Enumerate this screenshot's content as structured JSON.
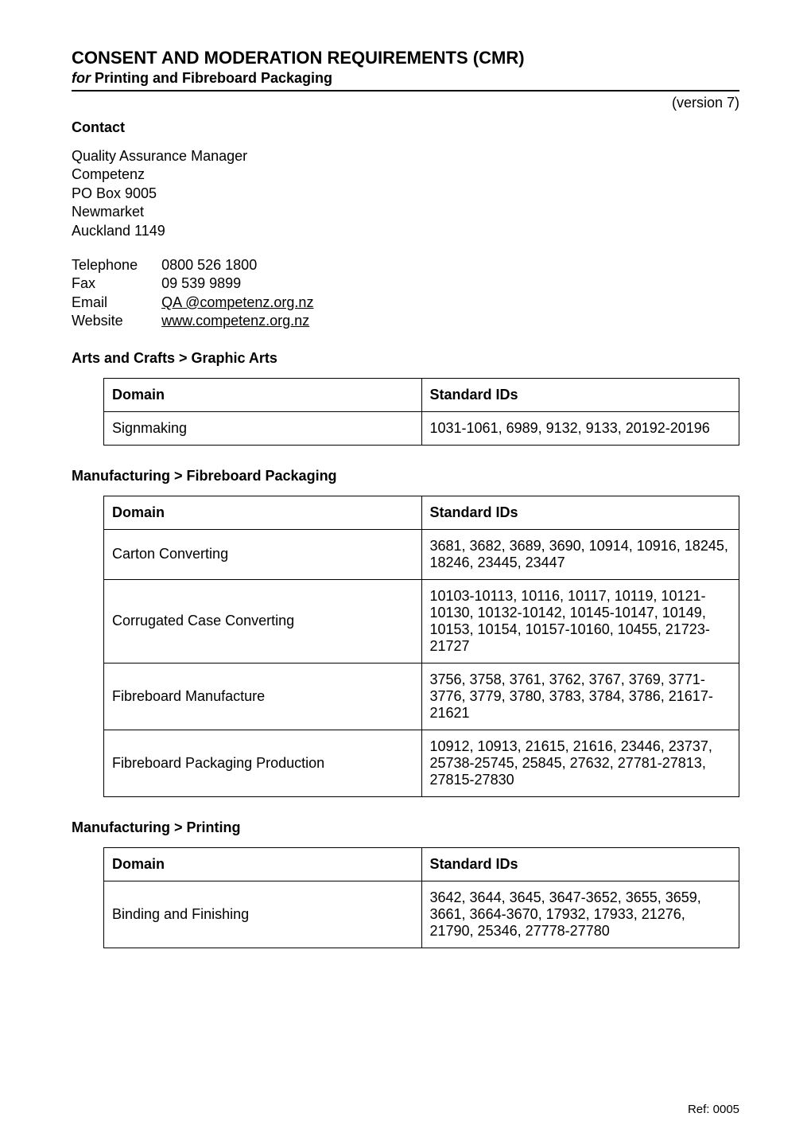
{
  "title": "CONSENT AND MODERATION REQUIREMENTS (CMR)",
  "subtitle_italic": "for",
  "subtitle_rest": " Printing and Fibreboard Packaging",
  "version": "(version 7)",
  "contact_heading": "Contact",
  "contact": {
    "line1": "Quality Assurance Manager",
    "line2": "Competenz",
    "line3": "PO Box 9005",
    "line4": "Newmarket",
    "line5": "Auckland 1149"
  },
  "contact_rows": {
    "telephone_label": "Telephone",
    "telephone_value": "0800 526 1800",
    "fax_label": "Fax",
    "fax_value": "09 539 9899",
    "email_label": "Email",
    "email_value": "QA @competenz.org.nz",
    "website_label": "Website",
    "website_value": "www.competenz.org.nz"
  },
  "section1": {
    "heading": "Arts and Crafts > Graphic Arts",
    "header_domain": "Domain",
    "header_ids": "Standard IDs",
    "rows": [
      {
        "domain": "Signmaking",
        "ids": "1031-1061, 6989, 9132, 9133, 20192-20196"
      }
    ]
  },
  "section2": {
    "heading": "Manufacturing > Fibreboard Packaging",
    "header_domain": "Domain",
    "header_ids": "Standard IDs",
    "rows": [
      {
        "domain": "Carton Converting",
        "ids": "3681, 3682, 3689, 3690, 10914, 10916, 18245, 18246, 23445, 23447"
      },
      {
        "domain": "Corrugated Case Converting",
        "ids": "10103-10113, 10116, 10117, 10119, 10121-10130, 10132-10142, 10145-10147, 10149, 10153, 10154, 10157-10160, 10455, 21723-21727"
      },
      {
        "domain": "Fibreboard Manufacture",
        "ids": "3756, 3758, 3761, 3762, 3767, 3769, 3771-3776, 3779, 3780, 3783, 3784, 3786, 21617-21621"
      },
      {
        "domain": "Fibreboard Packaging Production",
        "ids": "10912, 10913, 21615, 21616, 23446, 23737, 25738-25745, 25845, 27632, 27781-27813, 27815-27830"
      }
    ]
  },
  "section3": {
    "heading": "Manufacturing > Printing",
    "header_domain": "Domain",
    "header_ids": "Standard IDs",
    "rows": [
      {
        "domain": "Binding and Finishing",
        "ids": "3642, 3644, 3645, 3647-3652, 3655, 3659, 3661, 3664-3670, 17932, 17933, 21276, 21790, 25346, 27778-27780"
      }
    ]
  },
  "footer": "Ref: 0005"
}
